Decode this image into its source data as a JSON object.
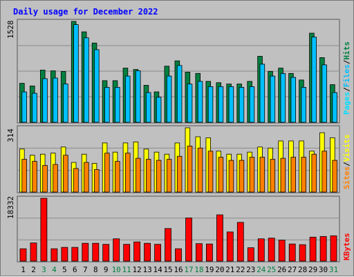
{
  "colors": {
    "background": "#c0c0c0",
    "panel": "#c0c0c0",
    "grid": "#8a8a8a",
    "title": "#0000ff",
    "hits": "#008040",
    "files": "#00c0ff",
    "pages": "#00e0ff",
    "visits": "#ffff00",
    "sites": "#ff8000",
    "kbytes": "#ff0000",
    "weekend_day": "#008040",
    "weekday": "#000000"
  },
  "chart_data": [
    {
      "type": "bar",
      "title": "Daily usage for December 2022",
      "panel": "hits-files-pages",
      "ymax_label": "1528",
      "ylim": [
        0,
        1528
      ],
      "grid": true,
      "categories": [
        "1",
        "2",
        "3",
        "4",
        "5",
        "6",
        "7",
        "8",
        "9",
        "10",
        "11",
        "12",
        "13",
        "14",
        "15",
        "16",
        "17",
        "18",
        "19",
        "20",
        "21",
        "22",
        "23",
        "24",
        "25",
        "26",
        "27",
        "28",
        "29",
        "30",
        "31"
      ],
      "weekend_days": [
        "3",
        "4",
        "10",
        "11",
        "17",
        "18",
        "24",
        "25",
        "31"
      ],
      "side_labels": [
        "Pages",
        "Files",
        "Hits"
      ],
      "side_label_separator": "/",
      "series": [
        {
          "name": "Hits",
          "color_key": "hits",
          "values": [
            590,
            550,
            790,
            780,
            770,
            1528,
            1370,
            1200,
            630,
            630,
            820,
            800,
            560,
            460,
            850,
            930,
            760,
            740,
            620,
            600,
            580,
            580,
            620,
            1000,
            770,
            820,
            740,
            640,
            1350,
            980,
            570
          ]
        },
        {
          "name": "Files",
          "color_key": "files",
          "values": [
            460,
            440,
            660,
            670,
            580,
            1480,
            1280,
            1100,
            530,
            530,
            700,
            780,
            450,
            380,
            700,
            860,
            580,
            620,
            540,
            540,
            540,
            530,
            540,
            880,
            700,
            740,
            680,
            530,
            1290,
            870,
            450
          ]
        },
        {
          "name": "Pages",
          "color_key": "pages",
          "values": [
            0,
            0,
            0,
            0,
            0,
            0,
            0,
            0,
            0,
            0,
            0,
            0,
            0,
            0,
            0,
            0,
            0,
            0,
            0,
            0,
            0,
            0,
            0,
            0,
            0,
            0,
            0,
            0,
            0,
            0,
            0
          ]
        }
      ]
    },
    {
      "type": "bar",
      "panel": "visits-sites",
      "ymax_label": "314",
      "ylim": [
        0,
        314
      ],
      "grid": true,
      "side_labels": [
        "Sites",
        "Visits"
      ],
      "side_label_separator": "/",
      "series": [
        {
          "name": "Visits",
          "color_key": "visits",
          "values": [
            210,
            180,
            185,
            190,
            220,
            145,
            185,
            140,
            240,
            195,
            240,
            245,
            210,
            195,
            185,
            240,
            314,
            270,
            265,
            200,
            185,
            185,
            195,
            220,
            215,
            250,
            250,
            250,
            200,
            290,
            265
          ]
        },
        {
          "name": "Sites",
          "color_key": "sites",
          "values": [
            160,
            150,
            130,
            135,
            180,
            115,
            145,
            110,
            190,
            150,
            190,
            165,
            160,
            155,
            160,
            175,
            225,
            215,
            200,
            170,
            155,
            155,
            170,
            170,
            160,
            165,
            170,
            170,
            185,
            200,
            155
          ]
        }
      ]
    },
    {
      "type": "bar",
      "panel": "kbytes",
      "ymax_label": "18332",
      "ylim": [
        0,
        18332
      ],
      "grid": true,
      "side_labels": [
        "KBytes"
      ],
      "series": [
        {
          "name": "KBytes",
          "color_key": "kbytes",
          "values": [
            3600,
            5300,
            18332,
            3600,
            4000,
            4000,
            5200,
            5200,
            4900,
            6500,
            4900,
            5600,
            5200,
            4900,
            9500,
            3600,
            12600,
            5100,
            5000,
            13500,
            8500,
            11300,
            3900,
            6500,
            6700,
            6100,
            5000,
            4800,
            7000,
            7200,
            7400
          ]
        }
      ]
    }
  ]
}
